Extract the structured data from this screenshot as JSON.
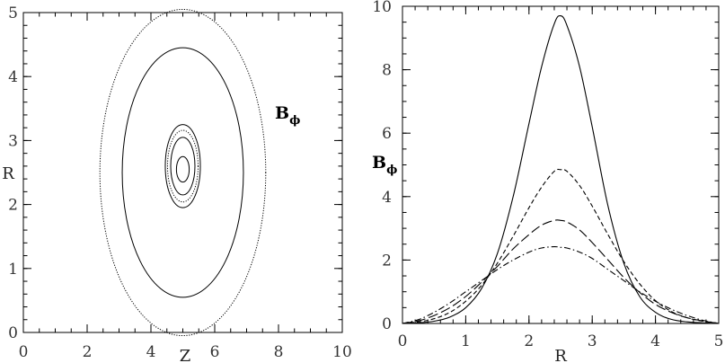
{
  "chart_data": [
    {
      "type": "contour",
      "xlabel": "Z",
      "ylabel": "R",
      "xlim": [
        0,
        10
      ],
      "ylim": [
        0,
        5
      ],
      "xticks": [
        "0",
        "2",
        "4",
        "6",
        "8",
        "10"
      ],
      "yticks": [
        "0",
        "1",
        "2",
        "3",
        "4",
        "5"
      ],
      "annotation": {
        "main": "B",
        "sub": "ϕ"
      },
      "contours": [
        {
          "style": "dotted",
          "center": [
            5.0,
            2.5
          ],
          "z_half_width": 2.6,
          "r_half_height": 2.55
        },
        {
          "style": "solid",
          "center": [
            5.0,
            2.5
          ],
          "z_half_width": 1.9,
          "r_half_height": 1.95
        },
        {
          "style": "solid",
          "center": [
            5.0,
            2.6
          ],
          "z_half_width": 0.55,
          "r_half_height": 0.65
        },
        {
          "style": "dotted",
          "center": [
            5.0,
            2.6
          ],
          "z_half_width": 0.48,
          "r_half_height": 0.56
        },
        {
          "style": "solid",
          "center": [
            5.0,
            2.6
          ],
          "z_half_width": 0.38,
          "r_half_height": 0.45
        },
        {
          "style": "solid",
          "center": [
            5.0,
            2.55
          ],
          "z_half_width": 0.2,
          "r_half_height": 0.2
        }
      ]
    },
    {
      "type": "line",
      "xlabel": "R",
      "ylabel": {
        "main": "B",
        "sub": "ϕ"
      },
      "xlim": [
        0,
        5
      ],
      "ylim": [
        0,
        10
      ],
      "xticks": [
        "0",
        "1",
        "2",
        "3",
        "4",
        "5"
      ],
      "yticks": [
        "0",
        "2",
        "4",
        "6",
        "8",
        "10"
      ],
      "x": [
        0,
        0.25,
        0.5,
        0.75,
        1.0,
        1.25,
        1.5,
        1.75,
        2.0,
        2.2,
        2.4,
        2.5,
        2.6,
        2.8,
        3.0,
        3.25,
        3.5,
        3.75,
        4.0,
        4.25,
        4.5,
        4.75,
        5.0
      ],
      "series": [
        {
          "style": "solid",
          "values": [
            0.0,
            0.02,
            0.07,
            0.2,
            0.5,
            1.1,
            2.2,
            4.0,
            6.3,
            8.1,
            9.45,
            9.7,
            9.4,
            8.1,
            6.2,
            3.7,
            1.9,
            0.85,
            0.35,
            0.13,
            0.05,
            0.02,
            0.0
          ]
        },
        {
          "style": "dashed",
          "values": [
            0.0,
            0.05,
            0.15,
            0.35,
            0.7,
            1.2,
            1.9,
            2.75,
            3.65,
            4.3,
            4.8,
            4.85,
            4.8,
            4.35,
            3.7,
            2.8,
            1.95,
            1.25,
            0.72,
            0.38,
            0.18,
            0.07,
            0.0
          ]
        },
        {
          "style": "longdash",
          "values": [
            0.0,
            0.08,
            0.25,
            0.5,
            0.85,
            1.3,
            1.8,
            2.35,
            2.8,
            3.1,
            3.25,
            3.25,
            3.2,
            2.95,
            2.55,
            2.0,
            1.45,
            0.98,
            0.6,
            0.35,
            0.18,
            0.08,
            0.0
          ]
        },
        {
          "style": "dashdot",
          "values": [
            0.0,
            0.12,
            0.35,
            0.65,
            1.0,
            1.35,
            1.7,
            2.0,
            2.25,
            2.38,
            2.42,
            2.4,
            2.38,
            2.25,
            2.05,
            1.7,
            1.35,
            1.0,
            0.7,
            0.45,
            0.25,
            0.1,
            0.0
          ]
        }
      ]
    }
  ]
}
